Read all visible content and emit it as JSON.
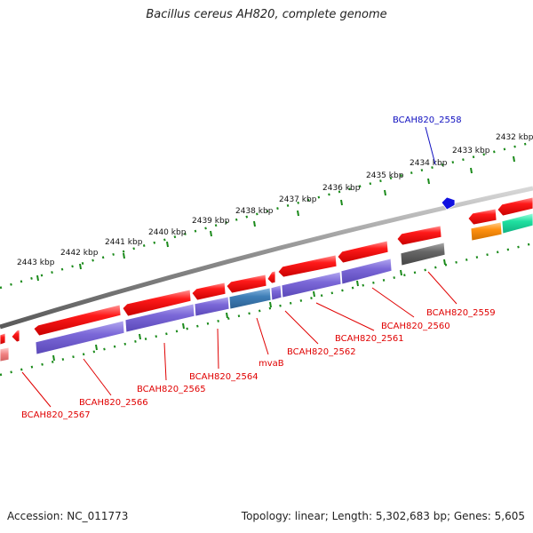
{
  "title": "Bacillus cereus AH820, complete genome",
  "footer": {
    "accession_label": "Accession:",
    "accession": "NC_011773",
    "topology_label": "Topology:",
    "topology": "linear",
    "length_label": "Length:",
    "length": "5,302,683 bp",
    "genes_label": "Genes:",
    "genes": "5,605"
  },
  "scale_ticks": [
    "2443 kbp",
    "2442 kbp",
    "2441 kbp",
    "2440 kbp",
    "2439 kbp",
    "2438 kbp",
    "2437 kbp",
    "2436 kbp",
    "2435 kbp",
    "2434 kbp",
    "2433 kbp",
    "2432 kbp"
  ],
  "genes": [
    {
      "name": "BCAH820_2567",
      "color": "#e00000"
    },
    {
      "name": "BCAH820_2566",
      "color": "#e00000"
    },
    {
      "name": "BCAH820_2565",
      "color": "#e00000"
    },
    {
      "name": "BCAH820_2564",
      "color": "#e00000"
    },
    {
      "name": "mvaB",
      "color": "#e00000"
    },
    {
      "name": "BCAH820_2562",
      "color": "#e00000"
    },
    {
      "name": "BCAH820_2561",
      "color": "#e00000"
    },
    {
      "name": "BCAH820_2560",
      "color": "#e00000"
    },
    {
      "name": "BCAH820_2559",
      "color": "#e00000"
    },
    {
      "name": "BCAH820_2558",
      "color": "#1010c0"
    }
  ],
  "colors": {
    "backbone": "#8c8c8c",
    "scale": "#1a8a1a",
    "cds": "#ff1010",
    "cog_purple": "#7b68d8",
    "cog_teal": "#3f7fb8",
    "cog_gray": "#666666",
    "cog_orange": "#ff9010",
    "cog_green": "#20e0a0",
    "label_red": "#e00000",
    "label_blue": "#1010c0"
  }
}
